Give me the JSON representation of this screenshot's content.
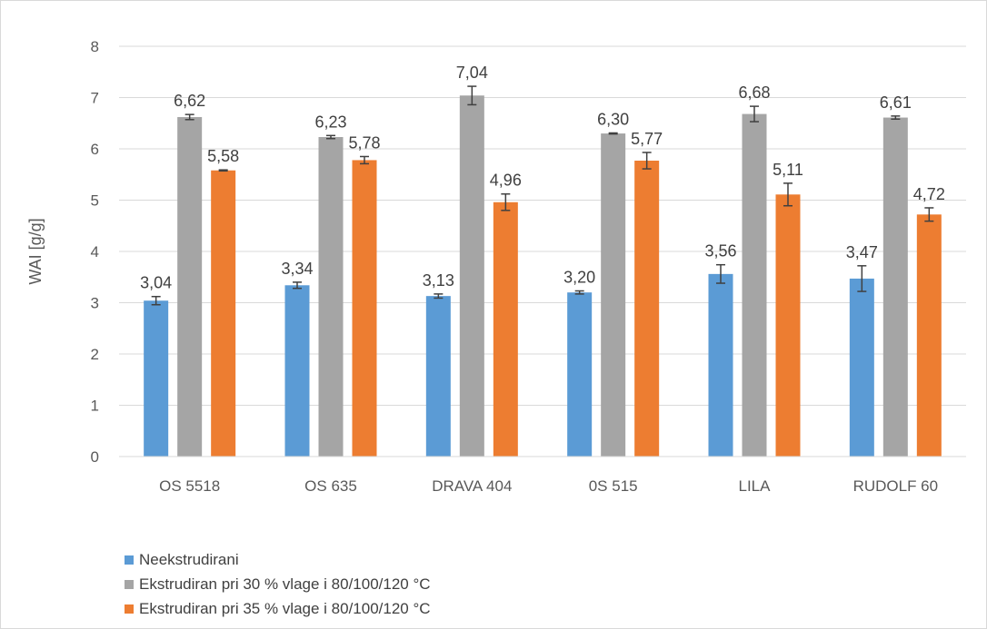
{
  "chart_data": {
    "type": "bar",
    "categories": [
      "OS 5518",
      "OS 635",
      "DRAVA 404",
      "0S 515",
      "LILA",
      "RUDOLF 60"
    ],
    "ylabel": "WAI [g/g]",
    "ylim": [
      0,
      8
    ],
    "yticks": [
      "0",
      "1",
      "2",
      "3",
      "4",
      "5",
      "6",
      "7",
      "8"
    ],
    "grid": true,
    "legend_position": "bottom-left",
    "series": [
      {
        "name": "Neekstrudirani",
        "color": "#5b9bd5",
        "values": [
          3.04,
          3.34,
          3.13,
          3.2,
          3.56,
          3.47
        ],
        "labels": [
          "3,04",
          "3,34",
          "3,13",
          "3,20",
          "3,56",
          "3,47"
        ],
        "errors": [
          0.08,
          0.06,
          0.04,
          0.03,
          0.18,
          0.25
        ]
      },
      {
        "name": "Ekstrudiran pri 30 % vlage i 80/100/120 °C",
        "color": "#a5a5a5",
        "values": [
          6.62,
          6.23,
          7.04,
          6.3,
          6.68,
          6.61
        ],
        "labels": [
          "6,62",
          "6,23",
          "7,04",
          "6,30",
          "6,68",
          "6,61"
        ],
        "errors": [
          0.05,
          0.03,
          0.18,
          0.01,
          0.15,
          0.03
        ]
      },
      {
        "name": "Ekstrudiran pri 35 % vlage i 80/100/120 °C",
        "color": "#ed7d31",
        "values": [
          5.58,
          5.78,
          4.96,
          5.77,
          5.11,
          4.72
        ],
        "labels": [
          "5,58",
          "5,78",
          "4,96",
          "5,77",
          "5,11",
          "4,72"
        ],
        "errors": [
          0.01,
          0.07,
          0.16,
          0.16,
          0.22,
          0.13
        ]
      }
    ]
  }
}
